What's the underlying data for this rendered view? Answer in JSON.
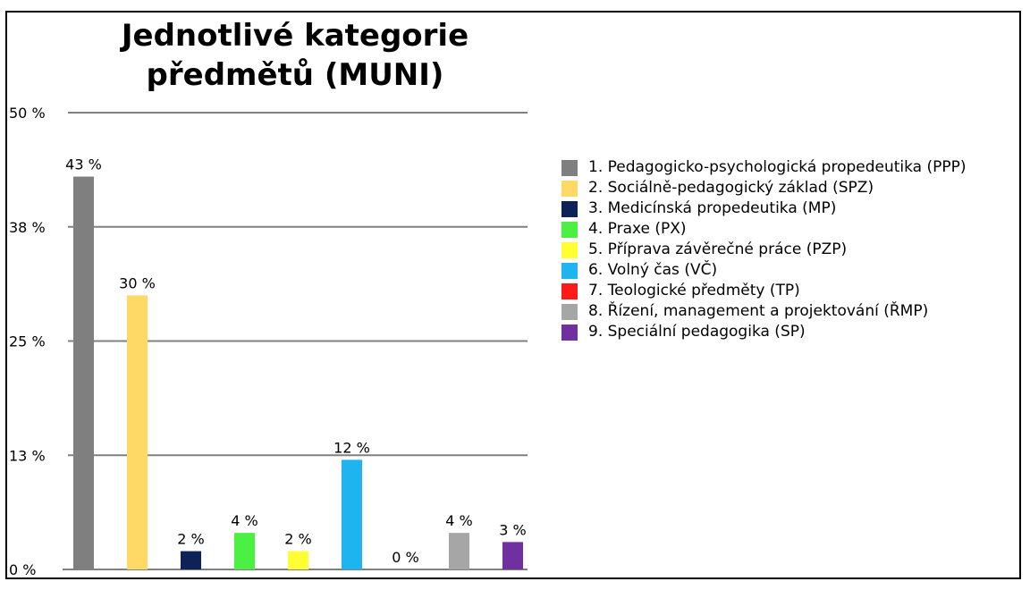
{
  "chart_data": {
    "type": "bar",
    "title": "Jednotlivé kategorie\npředmětů (MUNI)",
    "xlabel": "",
    "ylabel": "",
    "ylim": [
      0,
      50
    ],
    "y_ticks": [
      0,
      12.5,
      25,
      37.5,
      50
    ],
    "y_tick_labels": [
      "0 %",
      "13 %",
      "25 %",
      "38 %",
      "50 %"
    ],
    "grid": true,
    "legend_position": "right",
    "categories": [
      "1. Pedagogicko-psychologická propedeutika (PPP)",
      "2. Sociálně-pedagogický základ (SPZ)",
      "3. Medicínská propedeutika (MP)",
      "4. Praxe (PX)",
      "5. Příprava závěrečné práce (PZP)",
      "6. Volný čas (VČ)",
      "7. Teologické předměty (TP)",
      "8. Řízení, management a projektování (ŘMP)",
      "9. Speciální pedagogika (SP)"
    ],
    "values": [
      43,
      30,
      2,
      4,
      2,
      12,
      0,
      4,
      3
    ],
    "data_labels": [
      "43 %",
      "30 %",
      "2 %",
      "4 %",
      "2 %",
      "12 %",
      "0 %",
      "4 %",
      "3 %"
    ],
    "colors": [
      "#7f7f7f",
      "#ffd966",
      "#0d2259",
      "#4cf043",
      "#ffff33",
      "#1eb4ef",
      "#ff1a1a",
      "#a6a6a6",
      "#7030a0"
    ]
  }
}
